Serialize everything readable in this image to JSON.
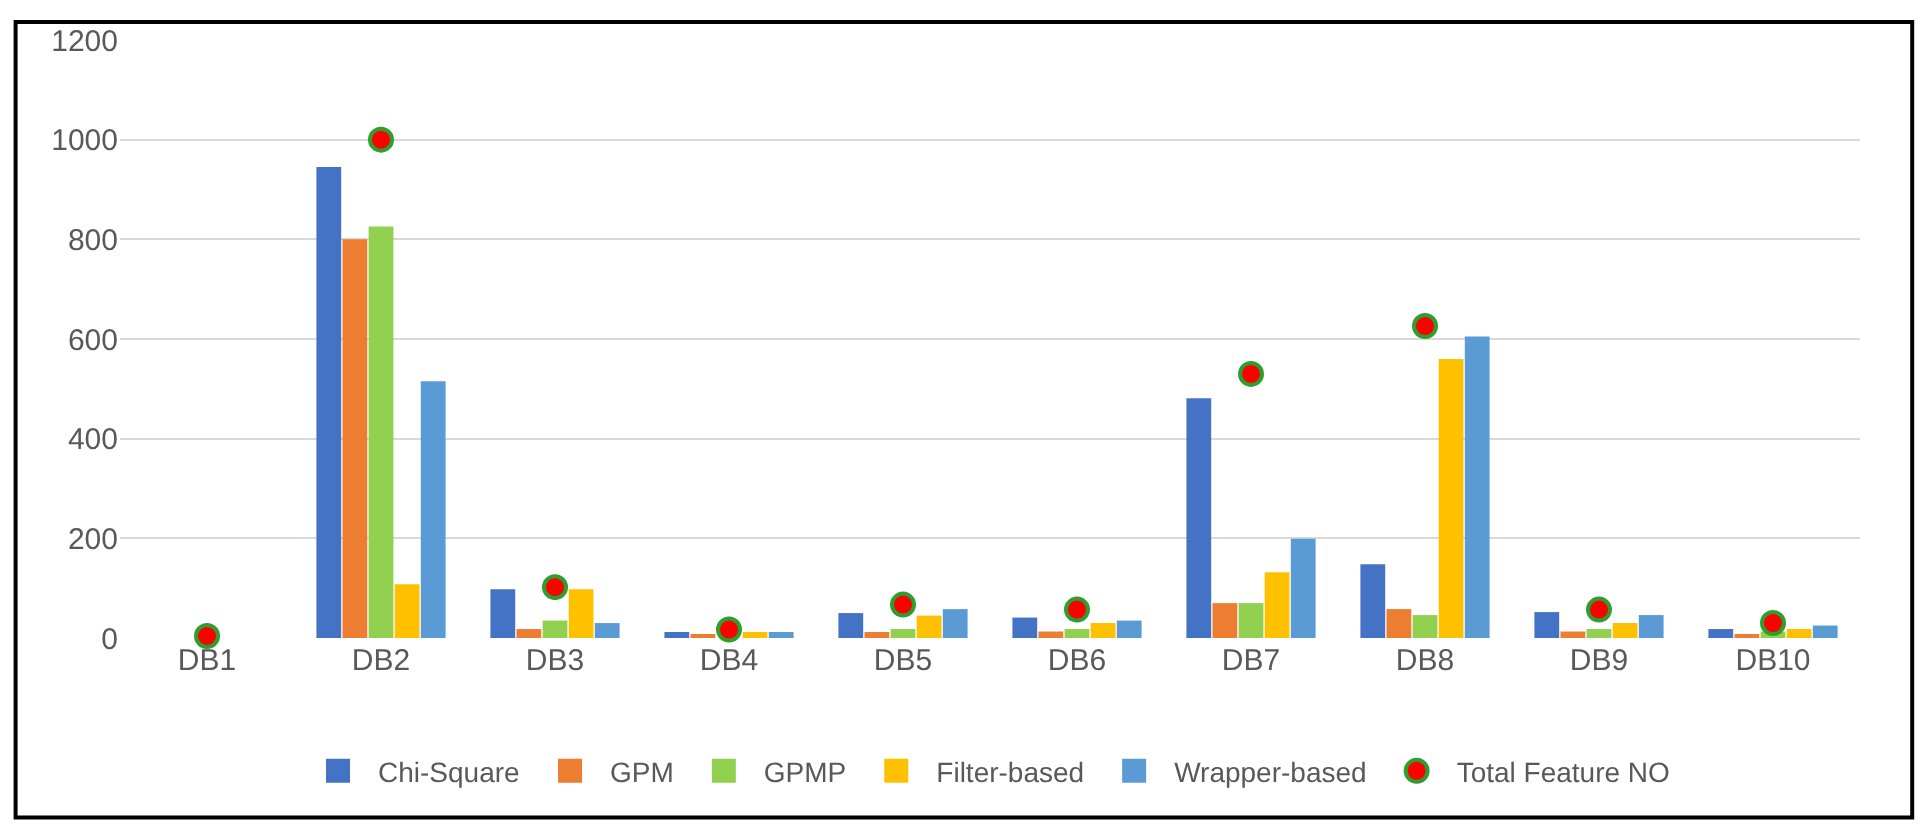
{
  "chart_data": {
    "type": "bar",
    "categories": [
      "DB1",
      "DB2",
      "DB3",
      "DB4",
      "DB5",
      "DB6",
      "DB7",
      "DB8",
      "DB9",
      "DB10"
    ],
    "series": [
      {
        "name": "Chi-Square",
        "color": "#4472c4",
        "values": [
          0,
          945,
          98,
          12,
          50,
          41,
          481,
          148,
          52,
          18
        ]
      },
      {
        "name": "GPM",
        "color": "#ed7d31",
        "values": [
          0,
          800,
          18,
          6,
          12,
          13,
          70,
          58,
          13,
          6
        ]
      },
      {
        "name": "GPMP",
        "color": "#92d050",
        "values": [
          0,
          826,
          35,
          null,
          18,
          18,
          70,
          46,
          18,
          13
        ]
      },
      {
        "name": "Filter-based",
        "color": "#ffc000",
        "values": [
          0,
          108,
          98,
          12,
          45,
          30,
          132,
          560,
          30,
          18
        ]
      },
      {
        "name": "Wrapper-based",
        "color": "#5b9bd5",
        "values": [
          0,
          515,
          30,
          12,
          58,
          35,
          199,
          605,
          46,
          25
        ]
      },
      {
        "name": "Total Feature NO",
        "type": "scatter",
        "marker": "circle",
        "color": "#ff0000",
        "values": [
          4,
          1000,
          102,
          17,
          67,
          57,
          530,
          626,
          57,
          30
        ]
      }
    ],
    "ylim": [
      0,
      1200
    ],
    "yticks": [
      0,
      200,
      400,
      600,
      800,
      1000,
      1200
    ],
    "grid": "y",
    "legend": "bottom"
  }
}
